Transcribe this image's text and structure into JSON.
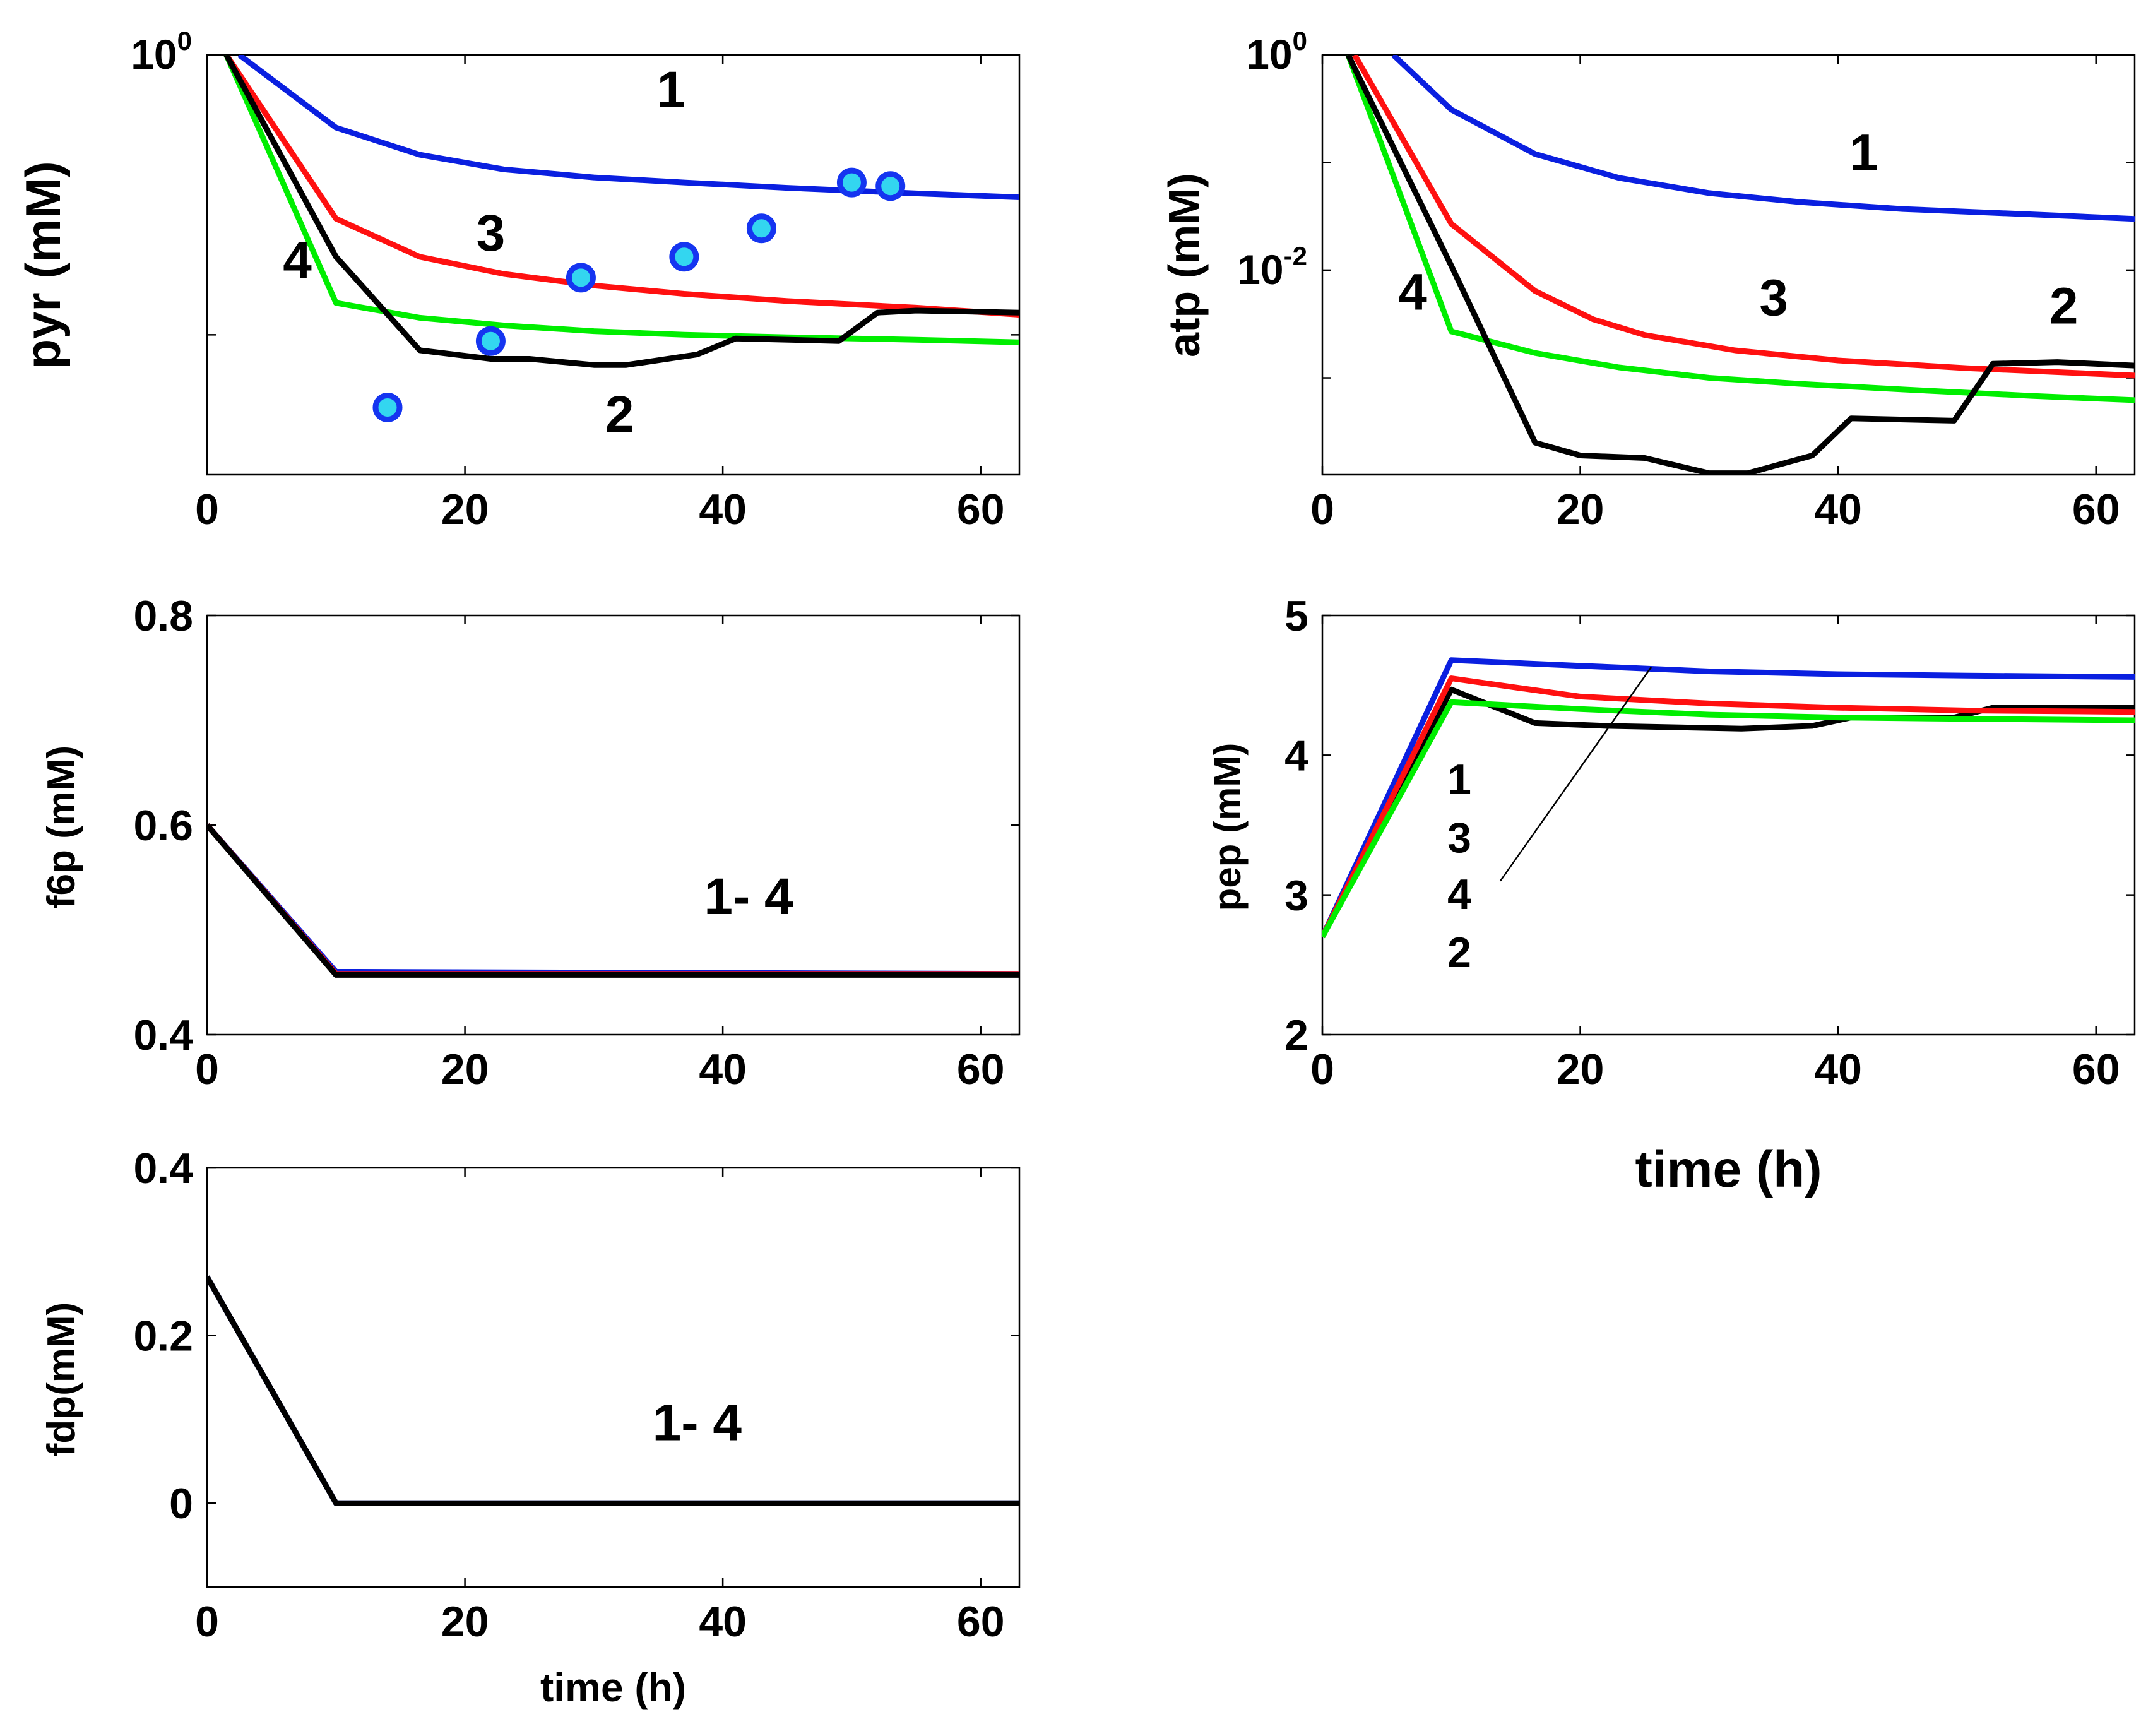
{
  "figure": {
    "description_free": true,
    "colors": {
      "1": "#0a1fe0",
      "2": "#000000",
      "3": "#ff1010",
      "4": "#00ee00",
      "marker_edge": "#1535f0",
      "marker_face": "#33d6f0"
    }
  },
  "chart_data": [
    {
      "id": "pyr",
      "type": "line",
      "ylabel": "pyr (mM)",
      "xlabel": "",
      "yscale": "log",
      "xlim": [
        0,
        63
      ],
      "ylim_log10": [
        -1.5,
        0
      ],
      "x_ticks": [
        0,
        20,
        40,
        60
      ],
      "y_ticks": [
        {
          "label": "10",
          "sup": "0",
          "log10": 0
        }
      ],
      "series": [
        {
          "name": "1",
          "color": "#0a1fe0",
          "x": [
            2.5,
            10,
            16.5,
            23,
            30,
            37,
            45,
            55,
            63
          ],
          "y": [
            1.0,
            0.55,
            0.44,
            0.39,
            0.365,
            0.35,
            0.335,
            0.32,
            0.31
          ]
        },
        {
          "name": "3",
          "color": "#ff1010",
          "x": [
            1.5,
            10,
            16.5,
            23,
            30,
            37,
            45,
            55,
            63
          ],
          "y": [
            1.0,
            0.26,
            0.19,
            0.165,
            0.15,
            0.14,
            0.132,
            0.125,
            0.118
          ]
        },
        {
          "name": "4",
          "color": "#00ee00",
          "x": [
            1.5,
            10,
            16.5,
            23,
            30,
            37,
            45,
            55,
            63
          ],
          "y": [
            1.0,
            0.13,
            0.115,
            0.108,
            0.103,
            0.1,
            0.098,
            0.096,
            0.094
          ]
        },
        {
          "name": "2",
          "color": "#000000",
          "x": [
            1.5,
            10,
            16.5,
            22,
            25,
            30,
            32.5,
            38,
            41,
            49,
            52,
            55,
            63
          ],
          "y": [
            1.0,
            0.19,
            0.088,
            0.082,
            0.082,
            0.078,
            0.078,
            0.085,
            0.097,
            0.095,
            0.12,
            0.122,
            0.12
          ]
        }
      ],
      "scatter": {
        "name": "data",
        "x": [
          14,
          22,
          29,
          37,
          43,
          50,
          53
        ],
        "y": [
          0.055,
          0.095,
          0.16,
          0.19,
          0.24,
          0.35,
          0.34
        ]
      },
      "annotations": [
        {
          "text": "1",
          "x": 36,
          "y": 0.65
        },
        {
          "text": "3",
          "x": 22,
          "y": 0.2
        },
        {
          "text": "4",
          "x": 7,
          "y": 0.16
        },
        {
          "text": "2",
          "x": 32,
          "y": 0.045
        }
      ]
    },
    {
      "id": "atp",
      "type": "line",
      "ylabel": "atp (mM)",
      "xlabel": "",
      "yscale": "log",
      "xlim": [
        0,
        63
      ],
      "ylim_log10": [
        -3.9,
        0
      ],
      "x_ticks": [
        0,
        20,
        40,
        60
      ],
      "y_ticks": [
        {
          "label": "10",
          "sup": "0",
          "log10": 0
        },
        {
          "label": "10",
          "sup": "-2",
          "log10": -2
        }
      ],
      "series": [
        {
          "name": "1",
          "color": "#0a1fe0",
          "x": [
            5.5,
            10,
            16.5,
            23,
            30,
            37,
            45,
            55,
            63
          ],
          "y": [
            1.0,
            0.31,
            0.12,
            0.072,
            0.052,
            0.043,
            0.037,
            0.033,
            0.03
          ]
        },
        {
          "name": "3",
          "color": "#ff1010",
          "x": [
            2.5,
            10,
            16.5,
            21,
            25,
            32,
            40,
            50,
            63
          ],
          "y": [
            1.0,
            0.027,
            0.0064,
            0.0035,
            0.0025,
            0.0018,
            0.00145,
            0.00123,
            0.00105
          ]
        },
        {
          "name": "4",
          "color": "#00ee00",
          "x": [
            2,
            10,
            16.5,
            23,
            30,
            37,
            45,
            55,
            63
          ],
          "y": [
            1.0,
            0.0027,
            0.0017,
            0.00125,
            0.001,
            0.00088,
            0.00078,
            0.00068,
            0.00062
          ]
        },
        {
          "name": "2",
          "color": "#000000",
          "x": [
            2,
            10,
            16.5,
            20,
            25,
            30,
            33,
            38,
            41,
            49,
            52,
            57,
            63
          ],
          "y": [
            1.0,
            0.011,
            0.00025,
            0.00019,
            0.00018,
            0.00013,
            0.00013,
            0.00019,
            0.00042,
            0.0004,
            0.00135,
            0.0014,
            0.0013
          ]
        }
      ],
      "annotations": [
        {
          "text": "1",
          "x": 42,
          "y": 0.085
        },
        {
          "text": "3",
          "x": 35,
          "y": 0.0038
        },
        {
          "text": "4",
          "x": 7,
          "y": 0.0043
        },
        {
          "text": "2",
          "x": 57.5,
          "y": 0.0032
        }
      ]
    },
    {
      "id": "f6p",
      "type": "line",
      "ylabel": "f6p (mM)",
      "xlabel": "",
      "yscale": "linear",
      "xlim": [
        0,
        63
      ],
      "ylim": [
        0.4,
        0.8
      ],
      "x_ticks": [
        0,
        20,
        40,
        60
      ],
      "y_ticks": [
        0.4,
        0.6,
        0.8
      ],
      "series": [
        {
          "name": "1",
          "color": "#0a1fe0",
          "x": [
            0,
            10,
            63
          ],
          "y": [
            0.6,
            0.46,
            0.458
          ]
        },
        {
          "name": "3",
          "color": "#ff1010",
          "x": [
            0,
            10,
            63
          ],
          "y": [
            0.6,
            0.458,
            0.458
          ]
        },
        {
          "name": "2",
          "color": "#000000",
          "x": [
            0,
            10,
            63
          ],
          "y": [
            0.6,
            0.457,
            0.457
          ]
        }
      ],
      "annotations": [
        {
          "text": "1- 4",
          "x": 42,
          "y": 0.515
        }
      ]
    },
    {
      "id": "pep",
      "type": "line",
      "ylabel": "pep (mM)",
      "xlabel": "time (h)",
      "yscale": "linear",
      "xlim": [
        0,
        63
      ],
      "ylim": [
        2,
        5
      ],
      "x_ticks": [
        0,
        20,
        40,
        60
      ],
      "y_ticks": [
        2,
        3,
        4,
        5
      ],
      "series": [
        {
          "name": "1",
          "color": "#0a1fe0",
          "x": [
            0,
            10,
            20,
            30,
            40,
            50,
            63
          ],
          "y": [
            2.7,
            4.68,
            4.64,
            4.6,
            4.58,
            4.57,
            4.56
          ]
        },
        {
          "name": "2",
          "color": "#000000",
          "x": [
            0,
            10,
            16.5,
            22,
            32.5,
            38,
            41,
            49,
            52,
            63
          ],
          "y": [
            2.7,
            4.47,
            4.23,
            4.21,
            4.19,
            4.21,
            4.27,
            4.27,
            4.34,
            4.34
          ]
        },
        {
          "name": "3",
          "color": "#ff1010",
          "x": [
            0,
            10,
            20,
            30,
            40,
            50,
            63
          ],
          "y": [
            2.7,
            4.55,
            4.42,
            4.37,
            4.34,
            4.32,
            4.31
          ]
        },
        {
          "name": "4",
          "color": "#00ee00",
          "x": [
            0,
            10,
            20,
            30,
            40,
            50,
            63
          ],
          "y": [
            2.7,
            4.38,
            4.33,
            4.29,
            4.27,
            4.26,
            4.25
          ]
        }
      ],
      "legend_labels": [
        "1",
        "3",
        "4",
        "2"
      ],
      "pointer_line": {
        "x": [
          13.8,
          25.5
        ],
        "y": [
          3.1,
          4.63
        ]
      }
    },
    {
      "id": "fdp",
      "type": "line",
      "ylabel": "fdp(mM)",
      "xlabel": "time (h)",
      "yscale": "linear",
      "xlim": [
        0,
        63
      ],
      "ylim": [
        -0.1,
        0.4
      ],
      "x_ticks": [
        0,
        20,
        40,
        60
      ],
      "y_ticks": [
        0,
        0.2,
        0.4
      ],
      "series": [
        {
          "name": "1",
          "color": "#0a1fe0",
          "x": [
            0,
            10,
            63
          ],
          "y": [
            0.27,
            0.0,
            0.0
          ]
        },
        {
          "name": "2",
          "color": "#000000",
          "x": [
            0,
            10,
            63
          ],
          "y": [
            0.27,
            0.0,
            0.0
          ]
        }
      ],
      "annotations": [
        {
          "text": "1- 4",
          "x": 38,
          "y": 0.075
        }
      ]
    }
  ]
}
